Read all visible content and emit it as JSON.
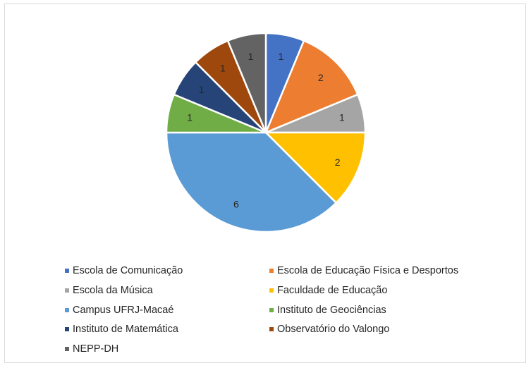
{
  "chart_data": {
    "type": "pie",
    "title": "",
    "categories": [
      "Escola de Comunicação",
      "Escola de Educação Física e Desportos",
      "Escola da Música",
      "Faculdade de Educação",
      "Campus UFRJ-Macaé",
      "Instituto de Geociências",
      "Instituto de Matemática",
      "Observatório do Valongo",
      "NEPP-DH"
    ],
    "values": [
      1,
      2,
      1,
      2,
      6,
      1,
      1,
      1,
      1
    ],
    "colors": [
      "#4472c4",
      "#ed7d31",
      "#a5a5a5",
      "#ffc000",
      "#5b9bd5",
      "#70ad47",
      "#264478",
      "#9e480e",
      "#636363"
    ],
    "data_labels": [
      "1",
      "2",
      "1",
      "2",
      "6",
      "1",
      "1",
      "1",
      "1"
    ],
    "start_angle_deg": 0,
    "direction": "clockwise",
    "legend_position": "bottom"
  },
  "legend": {
    "items": [
      {
        "label": "Escola de Comunicação",
        "color": "#4472c4"
      },
      {
        "label": "Escola de Educação Física e Desportos",
        "color": "#ed7d31"
      },
      {
        "label": "Escola da Música",
        "color": "#a5a5a5"
      },
      {
        "label": "Faculdade de Educação",
        "color": "#ffc000"
      },
      {
        "label": "Campus UFRJ-Macaé",
        "color": "#5b9bd5"
      },
      {
        "label": "Instituto de Geociências",
        "color": "#70ad47"
      },
      {
        "label": "Instituto de Matemática",
        "color": "#264478"
      },
      {
        "label": "Observatório do Valongo",
        "color": "#9e480e"
      },
      {
        "label": "NEPP-DH",
        "color": "#636363"
      }
    ]
  }
}
